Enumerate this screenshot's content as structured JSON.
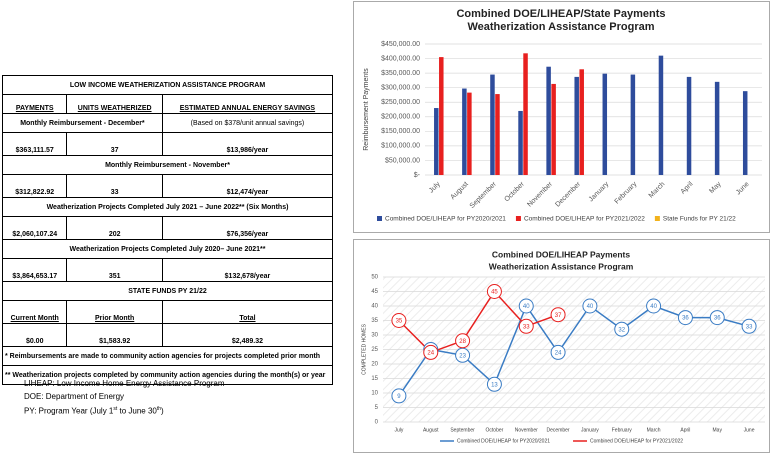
{
  "table": {
    "title": "LOW INCOME WEATHERIZATION ASSISTANCE PROGRAM",
    "headers": [
      "PAYMENTS",
      "UNITS WEATHERIZED",
      "ESTIMATED ANNUAL ENERGY SAVINGS"
    ],
    "savings_note": "(Based on $378/unit annual savings)",
    "sections": [
      {
        "label": "Monthly Reimbursement - December*",
        "row": [
          "$363,111.57",
          "37",
          "$13,986/year"
        ]
      },
      {
        "label": "Monthly Reimbursement - November*",
        "row": [
          "$312,822.92",
          "33",
          "$12,474/year"
        ]
      },
      {
        "label": "Weatherization Projects Completed July 2021 – June 2022** (Six Months)",
        "row": [
          "$2,060,107.24",
          "202",
          "$76,356/year"
        ]
      },
      {
        "label": "Weatherization Projects Completed July 2020– June 2021**",
        "row": [
          "$3,864,653.17",
          "351",
          "$132,678/year"
        ]
      }
    ],
    "state_funds": {
      "title": "STATE FUNDS PY 21/22",
      "headers": [
        "Current Month",
        "Prior Month",
        "Total"
      ],
      "row": [
        "$0.00",
        "$1,583.92",
        "$2,489.32"
      ]
    },
    "footnotes": [
      "* Reimbursements are made to community action agencies for projects completed prior month",
      "** Weatherization projects completed by community action agencies during the month(s) or year"
    ]
  },
  "abbreviations": {
    "liheap": "LIHEAP: Low Income Home Energy Assistance Program",
    "doe": "DOE: Department of Energy",
    "py": [
      "PY: Program Year (July 1",
      "st",
      " to June 30",
      "th",
      ")"
    ]
  },
  "chart_data": [
    {
      "type": "bar",
      "title": "Combined DOE/LIHEAP/State Payments",
      "subtitle": "Weatherization Assistance Program",
      "y_label": "Reimbursement Payments",
      "categories": [
        "July",
        "August",
        "September",
        "October",
        "November",
        "December",
        "January",
        "February",
        "March",
        "April",
        "May",
        "June"
      ],
      "series": [
        {
          "name": "Combined DOE/LIHEAP for PY2020/2021",
          "color": "#2e4c9c",
          "values": [
            230000,
            297000,
            345000,
            220000,
            372000,
            337000,
            348000,
            345000,
            410000,
            337000,
            320000,
            288000
          ]
        },
        {
          "name": "Combined DOE/LIHEAP for PY2021/2022",
          "color": "#e8201f",
          "values": [
            405000,
            283000,
            278000,
            418000,
            312822.92,
            363111.57,
            null,
            null,
            null,
            null,
            null,
            null
          ]
        },
        {
          "name": "State Funds for PY 21/22",
          "color": "#f2b21c",
          "values": [
            null,
            null,
            null,
            null,
            null,
            null,
            null,
            null,
            null,
            null,
            null,
            null
          ]
        }
      ],
      "ylim": [
        0,
        450000
      ],
      "yticks": [
        {
          "value": 0,
          "label": "$-"
        },
        {
          "value": 50000,
          "label": "$50,000.00"
        },
        {
          "value": 100000,
          "label": "$100,000.00"
        },
        {
          "value": 150000,
          "label": "$150,000.00"
        },
        {
          "value": 200000,
          "label": "$200,000.00"
        },
        {
          "value": 250000,
          "label": "$250,000.00"
        },
        {
          "value": 300000,
          "label": "$300,000.00"
        },
        {
          "value": 350000,
          "label": "$350,000.00"
        },
        {
          "value": 400000,
          "label": "$400,000.00"
        },
        {
          "value": 450000,
          "label": "$450,000.00"
        }
      ],
      "grid": true,
      "legend": "bottom"
    },
    {
      "type": "line",
      "title": "Combined DOE/LIHEAP Payments",
      "subtitle": "Weatherization Assistance Program",
      "y_label": "COMPLETED HOMES",
      "categories": [
        "July",
        "August",
        "September",
        "October",
        "November",
        "December",
        "January",
        "February",
        "March",
        "April",
        "May",
        "June"
      ],
      "series": [
        {
          "name": "Combined DOE/LIHEAP for PY2020/2021",
          "color": "#3a7cc4",
          "values": [
            9,
            25,
            23,
            13,
            40,
            24,
            40,
            32,
            40,
            36,
            36,
            33
          ]
        },
        {
          "name": "Combined DOE/LIHEAP for PY2021/2022",
          "color": "#e8201f",
          "values": [
            35,
            24,
            28,
            45,
            33,
            37,
            null,
            null,
            null,
            null,
            null,
            null
          ]
        }
      ],
      "ylim": [
        0,
        50
      ],
      "yticks": [
        0,
        5,
        10,
        15,
        20,
        25,
        30,
        35,
        40,
        45,
        50
      ],
      "grid": true,
      "legend": "bottom"
    }
  ]
}
